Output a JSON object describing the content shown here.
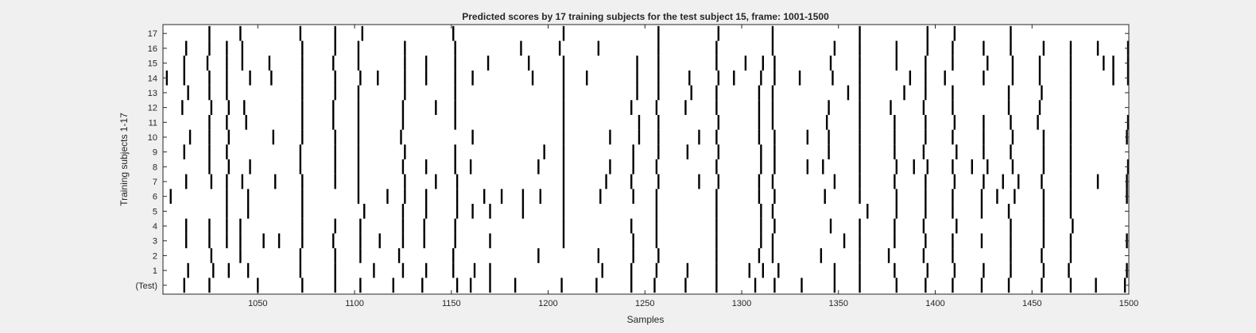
{
  "chart_data": {
    "type": "heatmap",
    "title": "Predicted scores by 17 training subjects for the test subject 15, frame: 1001-1500",
    "xlabel": "Samples",
    "ylabel": "Training subjects 1-17",
    "xlim": [
      1001,
      1500
    ],
    "x_ticks": [
      "1050",
      "1100",
      "1150",
      "1200",
      "1250",
      "1300",
      "1350",
      "1400",
      "1450",
      "1500"
    ],
    "rows": [
      "(Test)",
      "1",
      "2",
      "3",
      "4",
      "5",
      "6",
      "7",
      "8",
      "9",
      "10",
      "11",
      "12",
      "13",
      "14",
      "15",
      "16",
      "17"
    ],
    "grid": false,
    "colors": {
      "background": "#f0f0f0",
      "axes": "#ffffff",
      "mark": "#000000"
    },
    "events": {
      "(Test)": [
        1012,
        1025,
        1050,
        1073,
        1090,
        1103,
        1120,
        1135,
        1153,
        1160,
        1170,
        1183,
        1207,
        1225,
        1243,
        1255,
        1271,
        1287,
        1307,
        1317,
        1331,
        1348,
        1361,
        1380,
        1395,
        1409,
        1424,
        1438,
        1455,
        1470,
        1483,
        1498
      ],
      "1": [
        1014,
        1027,
        1035,
        1045,
        1072,
        1090,
        1110,
        1125,
        1137,
        1151,
        1162,
        1170,
        1228,
        1243,
        1256,
        1272,
        1287,
        1304,
        1311,
        1319,
        1348,
        1361,
        1379,
        1396,
        1410,
        1425,
        1439,
        1456,
        1469,
        1499
      ],
      "2": [
        1026,
        1041,
        1072,
        1090,
        1103,
        1123,
        1151,
        1195,
        1226,
        1244,
        1257,
        1287,
        1309,
        1316,
        1341,
        1361,
        1376,
        1394,
        1409,
        1439,
        1455,
        1470
      ],
      "3": [
        1013,
        1025,
        1034,
        1041,
        1053,
        1061,
        1073,
        1089,
        1103,
        1113,
        1125,
        1136,
        1152,
        1170,
        1208,
        1244,
        1256,
        1287,
        1310,
        1316,
        1353,
        1361,
        1379,
        1395,
        1409,
        1424,
        1439,
        1456,
        1470,
        1499
      ],
      "4": [
        1013,
        1025,
        1034,
        1041,
        1073,
        1090,
        1103,
        1125,
        1136,
        1152,
        1208,
        1243,
        1256,
        1287,
        1310,
        1317,
        1346,
        1361,
        1379,
        1394,
        1411,
        1439,
        1456,
        1471
      ],
      "5": [
        1034,
        1045,
        1073,
        1105,
        1125,
        1137,
        1153,
        1161,
        1170,
        1187,
        1208,
        1256,
        1287,
        1310,
        1316,
        1365,
        1380,
        1395,
        1409,
        1424,
        1438,
        1456,
        1470
      ],
      "6": [
        1005,
        1034,
        1045,
        1073,
        1102,
        1117,
        1126,
        1137,
        1153,
        1167,
        1176,
        1187,
        1196,
        1208,
        1227,
        1244,
        1256,
        1287,
        1309,
        1317,
        1343,
        1361,
        1380,
        1395,
        1409,
        1424,
        1432,
        1441,
        1456,
        1470,
        1499
      ],
      "7": [
        1013,
        1026,
        1034,
        1042,
        1059,
        1073,
        1090,
        1102,
        1126,
        1142,
        1153,
        1208,
        1230,
        1243,
        1257,
        1278,
        1288,
        1309,
        1316,
        1348,
        1361,
        1379,
        1395,
        1410,
        1425,
        1435,
        1443,
        1455,
        1470,
        1484,
        1499
      ],
      "8": [
        1025,
        1035,
        1046,
        1072,
        1090,
        1102,
        1125,
        1137,
        1152,
        1160,
        1195,
        1208,
        1232,
        1244,
        1256,
        1287,
        1310,
        1317,
        1334,
        1342,
        1361,
        1380,
        1389,
        1396,
        1409,
        1419,
        1427,
        1440,
        1456,
        1470,
        1500
      ],
      "9": [
        1012,
        1025,
        1034,
        1072,
        1090,
        1102,
        1126,
        1152,
        1198,
        1208,
        1244,
        1257,
        1272,
        1288,
        1310,
        1317,
        1345,
        1361,
        1379,
        1394,
        1411,
        1425,
        1439,
        1456,
        1470
      ],
      "10": [
        1015,
        1025,
        1035,
        1058,
        1073,
        1090,
        1102,
        1124,
        1161,
        1208,
        1232,
        1247,
        1257,
        1278,
        1287,
        1309,
        1317,
        1334,
        1345,
        1361,
        1379,
        1395,
        1409,
        1425,
        1440,
        1456,
        1470,
        1499
      ],
      "11": [
        1025,
        1034,
        1044,
        1073,
        1089,
        1102,
        1125,
        1152,
        1208,
        1247,
        1257,
        1288,
        1309,
        1316,
        1344,
        1361,
        1379,
        1395,
        1410,
        1425,
        1439,
        1453,
        1470,
        1500
      ],
      "12": [
        1011,
        1026,
        1035,
        1043,
        1073,
        1089,
        1102,
        1125,
        1142,
        1152,
        1208,
        1243,
        1256,
        1271,
        1287,
        1309,
        1316,
        1345,
        1361,
        1377,
        1394,
        1409,
        1438,
        1454,
        1470
      ],
      "13": [
        1014,
        1025,
        1034,
        1073,
        1090,
        1102,
        1126,
        1152,
        1208,
        1246,
        1257,
        1274,
        1287,
        1309,
        1316,
        1355,
        1361,
        1384,
        1395,
        1409,
        1438,
        1455,
        1470
      ],
      "14": [
        1003,
        1012,
        1025,
        1034,
        1046,
        1057,
        1073,
        1090,
        1103,
        1112,
        1126,
        1137,
        1152,
        1161,
        1192,
        1208,
        1220,
        1246,
        1257,
        1273,
        1288,
        1296,
        1310,
        1317,
        1330,
        1347,
        1361,
        1387,
        1395,
        1405,
        1425,
        1440,
        1454,
        1470,
        1492,
        1500
      ],
      "15": [
        1012,
        1024,
        1034,
        1042,
        1056,
        1073,
        1089,
        1102,
        1126,
        1137,
        1152,
        1169,
        1190,
        1208,
        1246,
        1257,
        1287,
        1302,
        1311,
        1317,
        1346,
        1361,
        1380,
        1395,
        1409,
        1427,
        1440,
        1454,
        1470,
        1487,
        1492,
        1500
      ],
      "16": [
        1013,
        1025,
        1034,
        1042,
        1073,
        1090,
        1102,
        1126,
        1152,
        1186,
        1206,
        1226,
        1257,
        1287,
        1316,
        1348,
        1361,
        1380,
        1396,
        1409,
        1425,
        1439,
        1456,
        1470,
        1484,
        1500
      ],
      "17": [
        1025,
        1041,
        1072,
        1090,
        1104,
        1151,
        1208,
        1257,
        1288,
        1316,
        1361,
        1396,
        1410,
        1439
      ]
    }
  }
}
